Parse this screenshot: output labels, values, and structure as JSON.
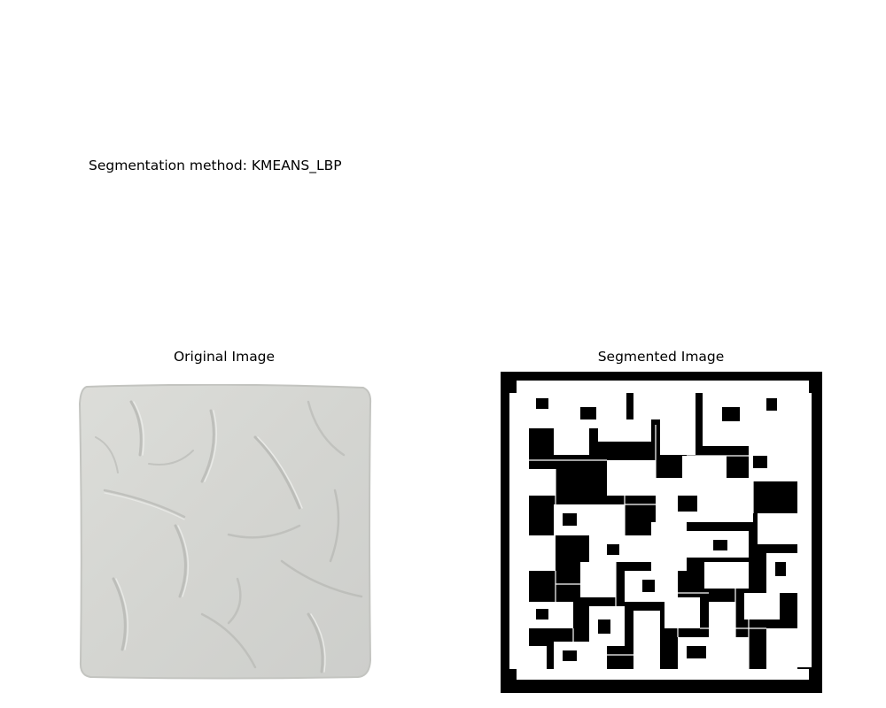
{
  "figure": {
    "suptitle": "Segmentation method: KMEANS_LBP"
  },
  "panels": [
    {
      "title": "Original Image",
      "content": "textured-gray-tile"
    },
    {
      "title": "Segmented Image",
      "content": "binary-segmentation-mask"
    }
  ],
  "colors": {
    "background": "#ffffff",
    "tile_face": "#d6d7d3",
    "tile_shadow": "#b9bab6",
    "tile_highlight": "#e8e9e6",
    "mask_foreground": "#ffffff",
    "mask_background": "#000000"
  }
}
